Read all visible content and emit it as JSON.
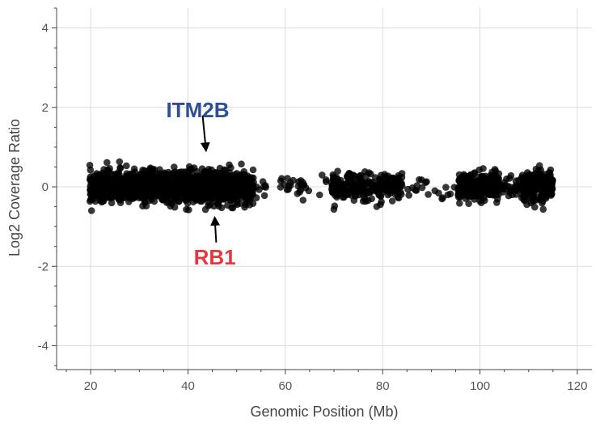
{
  "chart_data": {
    "type": "scatter",
    "title": "",
    "xlabel": "Genomic Position (Mb)",
    "ylabel": "Log2 Coverage Ratio",
    "xlim": [
      13,
      123
    ],
    "ylim": [
      -4.6,
      4.5
    ],
    "xticks": [
      20,
      40,
      60,
      80,
      100,
      120
    ],
    "xtick_labels": [
      "20",
      "40",
      "60",
      "80",
      "100",
      "120"
    ],
    "yticks": [
      -4,
      -2,
      0,
      2,
      4
    ],
    "ytick_labels": [
      "-4",
      "-2",
      "0",
      "2",
      "4"
    ],
    "grid": true,
    "point_color": "#000000",
    "point_opacity": 0.78,
    "segments": [
      {
        "x_start": 19.8,
        "x_end": 53.5,
        "n_points": 1300,
        "sd": 0.2
      },
      {
        "x_start": 54.0,
        "x_end": 56.0,
        "n_points": 8,
        "sd": 0.12
      },
      {
        "x_start": 59.0,
        "x_end": 65.0,
        "n_points": 25,
        "sd": 0.14
      },
      {
        "x_start": 66.0,
        "x_end": 68.5,
        "n_points": 4,
        "sd": 0.2
      },
      {
        "x_start": 69.5,
        "x_end": 84.0,
        "n_points": 260,
        "sd": 0.17
      },
      {
        "x_start": 85.0,
        "x_end": 95.0,
        "n_points": 20,
        "sd": 0.13
      },
      {
        "x_start": 95.5,
        "x_end": 104.0,
        "n_points": 330,
        "sd": 0.17
      },
      {
        "x_start": 104.5,
        "x_end": 108.0,
        "n_points": 30,
        "sd": 0.13
      },
      {
        "x_start": 108.5,
        "x_end": 115.0,
        "n_points": 280,
        "sd": 0.17
      }
    ],
    "annotations": [
      {
        "text": "ITM2B",
        "color": "#2E4F94",
        "label_x": 42,
        "label_y": 1.75,
        "arrow_from": [
          43.0,
          1.8
        ],
        "arrow_to": [
          43.7,
          0.92
        ]
      },
      {
        "text": "RB1",
        "color": "#E8363E",
        "label_x": 45.5,
        "label_y": -1.95,
        "arrow_from": [
          45.8,
          -1.4
        ],
        "arrow_to": [
          45.5,
          -0.78
        ]
      }
    ]
  }
}
